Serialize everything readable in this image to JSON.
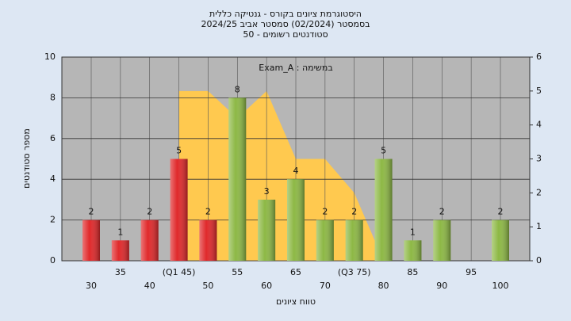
{
  "chart_data": {
    "type": "bar",
    "title": [
      "היסטוגרמת ציונים בקורס - גנטיקה כללית",
      "בסמסטר (02/2024) סמסטר אביב 2024/25",
      "סטודנטים רשומים - 50"
    ],
    "annotation": "Exam_A : במשימה",
    "y_label": "מספר סטודנטים",
    "x_label": "טווח ציונים",
    "categories": [
      "30",
      "35",
      "40",
      "(Q1 45)",
      "50",
      "55",
      "60",
      "65",
      "70",
      "(Q3 75)",
      "80",
      "85",
      "90",
      "95",
      "100"
    ],
    "values": [
      2,
      1,
      2,
      5,
      2,
      8,
      3,
      4,
      2,
      2,
      5,
      1,
      2,
      null,
      2
    ],
    "colors": [
      "#e0292b",
      "#e0292b",
      "#e0292b",
      "#e0292b",
      "#e0292b",
      "#8db845",
      "#8db845",
      "#8db845",
      "#8db845",
      "#8db845",
      "#8db845",
      "#8db845",
      "#8db845",
      "#8db845",
      "#8db845"
    ],
    "area": {
      "color": "#ffc94f",
      "axis": "y2",
      "values": [
        null,
        null,
        null,
        5,
        5,
        4.2,
        5,
        3,
        3,
        2,
        0,
        null,
        null,
        null,
        null
      ]
    },
    "ylim": [
      0,
      10
    ],
    "yticks": [
      0,
      2,
      4,
      6,
      8,
      10
    ],
    "y2lim": [
      0,
      6
    ],
    "y2ticks": [
      0,
      1,
      2,
      3,
      4,
      5,
      6
    ],
    "grid": true
  }
}
